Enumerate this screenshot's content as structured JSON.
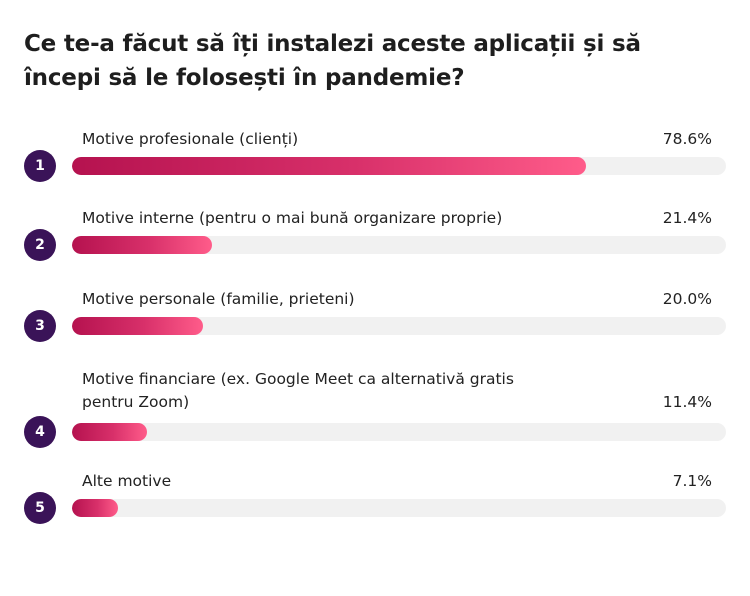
{
  "title": "Ce te-a făcut să îți instalezi aceste aplicații și să începi să le folosești în pandemie?",
  "colors": {
    "badge": "#3a1358",
    "bar_start": "#b5124f",
    "bar_end": "#ff5c8a",
    "track": "#f1f1f1"
  },
  "chart_data": {
    "type": "bar",
    "orientation": "horizontal",
    "title": "Ce te-a făcut să îți instalezi aceste aplicații și să începi să le folosești în pandemie?",
    "xlim": [
      0,
      100
    ],
    "categories": [
      "Motive profesionale (clienți)",
      "Motive interne (pentru o mai bună organizare proprie)",
      "Motive personale (familie, prieteni)",
      "Motive financiare (ex. Google Meet ca alternativă gratis pentru Zoom)",
      "Alte motive"
    ],
    "values": [
      78.6,
      21.4,
      20.0,
      11.4,
      7.1
    ],
    "items": [
      {
        "rank": "1",
        "label_lines": [
          "Motive profesionale (clienți)"
        ],
        "value": 78.6,
        "value_label": "78.6%"
      },
      {
        "rank": "2",
        "label_lines": [
          "Motive interne (pentru o mai bună organizare proprie)"
        ],
        "value": 21.4,
        "value_label": "21.4%"
      },
      {
        "rank": "3",
        "label_lines": [
          "Motive personale (familie, prieteni)"
        ],
        "value": 20.0,
        "value_label": "20.0%"
      },
      {
        "rank": "4",
        "label_lines": [
          "Motive financiare (ex. Google Meet ca alternativă gratis",
          "pentru Zoom)"
        ],
        "value": 11.4,
        "value_label": "11.4%"
      },
      {
        "rank": "5",
        "label_lines": [
          "Alte motive"
        ],
        "value": 7.1,
        "value_label": "7.1%"
      }
    ]
  }
}
